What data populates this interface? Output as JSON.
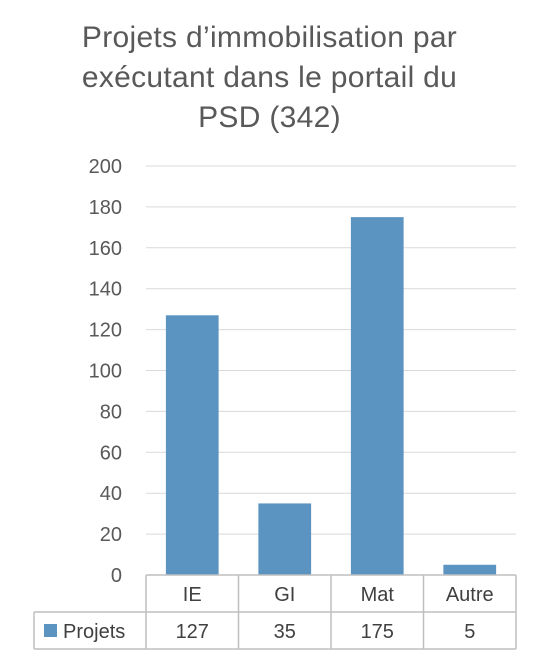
{
  "chart_data": {
    "type": "bar",
    "title": "Projets d’immobilisation par exécutant dans le portail du PSD (342)",
    "title_lines": [
      "Projets d’immobilisation par",
      "exécutant dans le portail du",
      "PSD (342)"
    ],
    "categories": [
      "IE",
      "GI",
      "Mat",
      "Autre"
    ],
    "series": [
      {
        "name": "Projets",
        "values": [
          127,
          35,
          175,
          5
        ],
        "color": "#5b93c1"
      }
    ],
    "ylim": [
      0,
      200
    ],
    "yticks": [
      0,
      20,
      40,
      60,
      80,
      100,
      120,
      140,
      160,
      180,
      200
    ],
    "grid": true,
    "legend": "data-table",
    "data_table": true
  }
}
